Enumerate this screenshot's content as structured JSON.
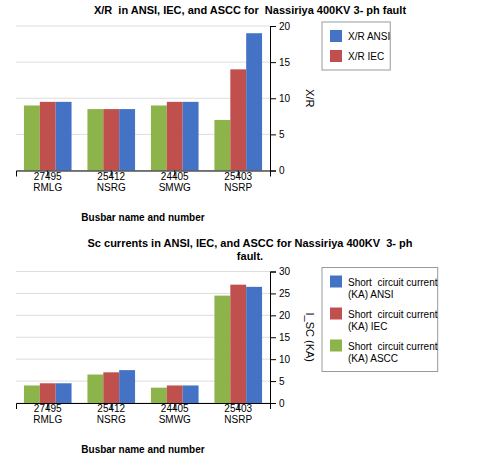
{
  "chart_data": [
    {
      "type": "bar",
      "title": "X/R  in ANSI, IEC, and ASCC for  Nassiriya 400KV 3- ph fault",
      "x_label": "Busbar name and number",
      "y_label": "X/R",
      "categories": [
        "27495\nRMLG",
        "25412\nNSRG",
        "24405\nSMWG",
        "25403\nNSRP"
      ],
      "series": [
        {
          "color": "#8db44a",
          "values": [
            9.0,
            8.5,
            9.0,
            7.0
          ]
        },
        {
          "name": "X/R IEC",
          "color": "#c0504d",
          "values": [
            9.5,
            8.5,
            9.5,
            14.0
          ]
        },
        {
          "name": "X/R ANSI",
          "color": "#4472c4",
          "values": [
            9.5,
            8.5,
            9.5,
            19.0
          ]
        }
      ],
      "ylim": [
        0,
        20
      ],
      "yticks": [
        0,
        5,
        10,
        15,
        20
      ],
      "grid": true,
      "legend": "right"
    },
    {
      "type": "bar",
      "title": "Sc currents in ANSI, IEC, and ASCC for Nassiriya 400KV  3- ph\nfault.",
      "x_label": "Busbar name and number",
      "y_label": "I_SC (KA)",
      "categories": [
        "27495\nRMLG",
        "25412\nNSRG",
        "24405\nSMWG",
        "25403\nNSRP"
      ],
      "series": [
        {
          "name": "Short  circuit current\n(KA) ASCC",
          "color": "#8db44a",
          "values": [
            4.0,
            6.5,
            3.5,
            24.5
          ]
        },
        {
          "name": "Short  circuit current\n(KA) IEC",
          "color": "#c0504d",
          "values": [
            4.5,
            7.0,
            4.0,
            27.0
          ]
        },
        {
          "name": "Short  circuit current\n(KA) ANSI",
          "color": "#4472c4",
          "values": [
            4.5,
            7.5,
            4.0,
            26.5
          ]
        }
      ],
      "ylim": [
        0,
        30
      ],
      "yticks": [
        0,
        5,
        10,
        15,
        20,
        25,
        30
      ],
      "grid": true,
      "legend": "right"
    }
  ]
}
